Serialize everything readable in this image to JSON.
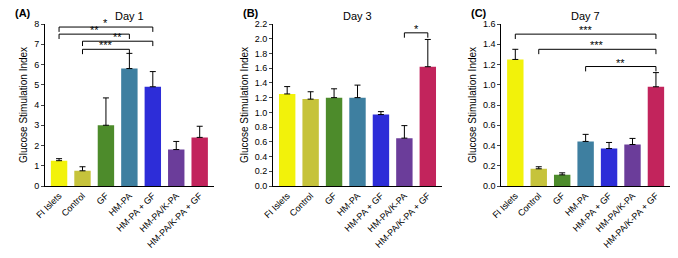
{
  "chart_data": [
    {
      "type": "bar",
      "label": "(A)",
      "title": "Day 1",
      "y_label": "Glucose Stimulation Index",
      "grid": false,
      "categories": [
        "FI Islets",
        "Control",
        "GF",
        "HM-PA",
        "HM-PA + GF",
        "HM-PA/K-PA",
        "HM-PA/K-PA + GF"
      ],
      "values": [
        1.25,
        0.75,
        3.0,
        5.8,
        4.9,
        1.8,
        2.4
      ],
      "errors": [
        0.1,
        0.2,
        1.35,
        0.75,
        0.75,
        0.4,
        0.55
      ],
      "colors": [
        "#f2f20a",
        "#c6c33b",
        "#4d8b2b",
        "#3e7fa0",
        "#2d2dd8",
        "#6b3d9a",
        "#c2245c"
      ],
      "ylim": [
        0,
        8
      ],
      "yticks": [
        0,
        1,
        2,
        3,
        4,
        5,
        6,
        7,
        8
      ],
      "significance": [
        {
          "from": "FI Islets",
          "to": "HM-PA + GF",
          "label": "*",
          "y": 7.85
        },
        {
          "from": "FI Islets",
          "to": "HM-PA",
          "label": "**",
          "y": 7.5
        },
        {
          "from": "Control",
          "to": "HM-PA + GF",
          "label": "**",
          "y": 7.15
        },
        {
          "from": "Control",
          "to": "HM-PA",
          "label": "***",
          "y": 6.75
        }
      ]
    },
    {
      "type": "bar",
      "label": "(B)",
      "title": "Day 3",
      "y_label": "Glucose Stimulation Index",
      "grid": false,
      "categories": [
        "FI Islets",
        "Control",
        "GF",
        "HM-PA",
        "HM-PA + GF",
        "HM-PA/K-PA",
        "HM-PA/K-PA + GF"
      ],
      "values": [
        1.25,
        1.18,
        1.2,
        1.2,
        0.97,
        0.65,
        1.62
      ],
      "errors": [
        0.1,
        0.1,
        0.12,
        0.17,
        0.04,
        0.17,
        0.37
      ],
      "colors": [
        "#f2f20a",
        "#c6c33b",
        "#4d8b2b",
        "#3e7fa0",
        "#2d2dd8",
        "#6b3d9a",
        "#c2245c"
      ],
      "ylim": [
        0,
        2.2
      ],
      "yticks": [
        {
          "value": 0,
          "label": "0.0"
        },
        0.2,
        0.4,
        0.6,
        0.8,
        {
          "value": 1,
          "label": "1.0"
        },
        1.2,
        1.4,
        1.6,
        1.8,
        {
          "value": 2,
          "label": "2.0"
        },
        2.2
      ],
      "significance": [
        {
          "from": "HM-PA/K-PA",
          "to": "HM-PA/K-PA + GF",
          "label": "*",
          "y": 2.08
        }
      ]
    },
    {
      "type": "bar",
      "label": "(C)",
      "title": "Day 7",
      "y_label": "Glucose Stimulation Index",
      "grid": false,
      "categories": [
        "FI Islets",
        "Control",
        "GF",
        "HM-PA",
        "HM-PA + GF",
        "HM-PA/K-PA",
        "HM-PA/K-PA + GF"
      ],
      "values": [
        1.25,
        0.17,
        0.11,
        0.44,
        0.37,
        0.41,
        0.98
      ],
      "errors": [
        0.1,
        0.02,
        0.02,
        0.07,
        0.06,
        0.06,
        0.14
      ],
      "colors": [
        "#f2f20a",
        "#c6c33b",
        "#4d8b2b",
        "#3e7fa0",
        "#2d2dd8",
        "#6b3d9a",
        "#c2245c"
      ],
      "ylim": [
        0,
        1.6
      ],
      "yticks": [
        {
          "value": 0,
          "label": "0.0"
        },
        0.2,
        0.4,
        0.6,
        0.8,
        {
          "value": 1,
          "label": "1.0"
        },
        1.2,
        1.4,
        1.6
      ],
      "significance": [
        {
          "from": "FI Islets",
          "to": "HM-PA/K-PA + GF",
          "label": "***",
          "y": 1.5
        },
        {
          "from": "Control",
          "to": "HM-PA/K-PA + GF",
          "label": "***",
          "y": 1.35
        },
        {
          "from": "HM-PA",
          "to": "HM-PA/K-PA + GF",
          "label": "**",
          "y": 1.18
        }
      ]
    }
  ]
}
